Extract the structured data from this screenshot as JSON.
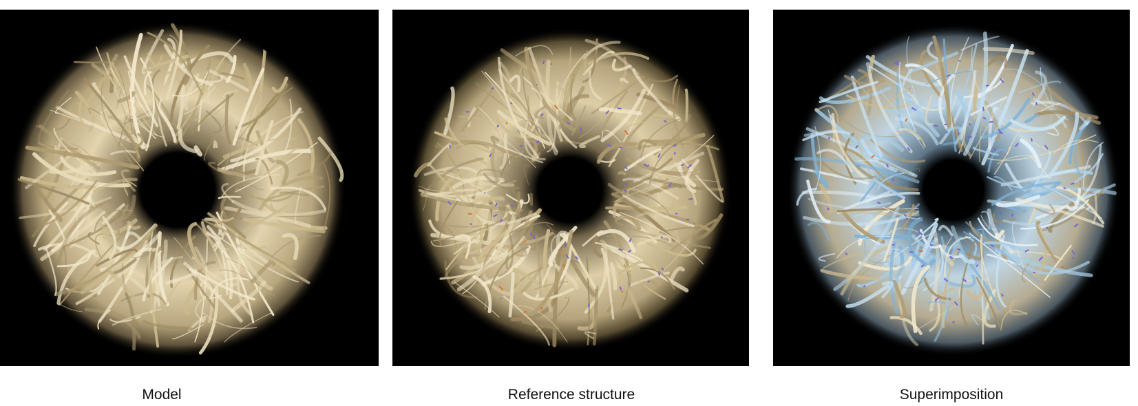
{
  "panels": [
    {
      "caption": "Model"
    },
    {
      "caption": "Reference structure"
    },
    {
      "caption": "Superimposition"
    }
  ],
  "colors": {
    "background": "#000000",
    "protein_tan": "#d6c7a1",
    "protein_blue": "#9fc7e3",
    "ligand_purple": "#7766cc",
    "ligand_orange": "#d9752a"
  }
}
